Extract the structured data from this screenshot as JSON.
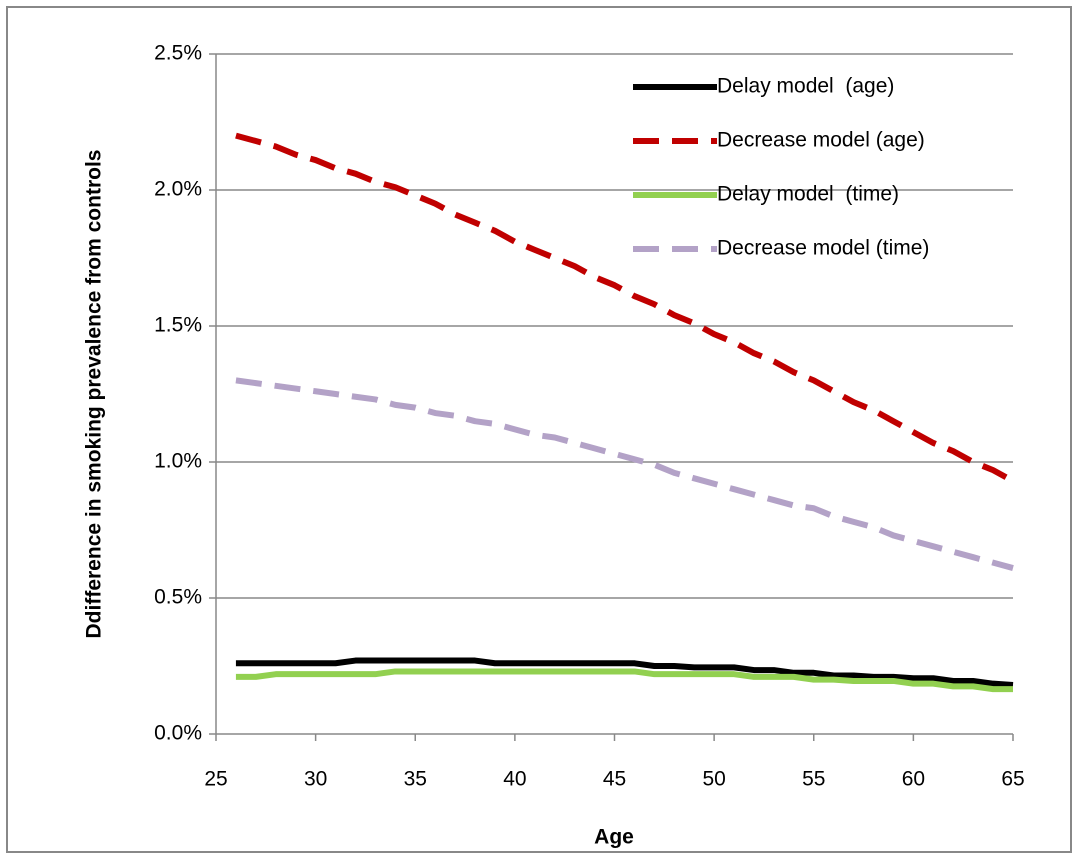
{
  "chart_data": {
    "type": "line",
    "x_label": "Age",
    "y_label": "Ddifference in smoking prevalence from controls",
    "x": [
      26,
      27,
      28,
      29,
      30,
      31,
      32,
      33,
      34,
      35,
      36,
      37,
      38,
      39,
      40,
      41,
      42,
      43,
      44,
      45,
      46,
      47,
      48,
      49,
      50,
      51,
      52,
      53,
      54,
      55,
      56,
      57,
      58,
      59,
      60,
      61,
      62,
      63,
      64,
      65
    ],
    "series": [
      {
        "name": "Delay model  (age)",
        "color": "#000000",
        "dash": false,
        "values": [
          0.26,
          0.26,
          0.26,
          0.26,
          0.26,
          0.26,
          0.27,
          0.27,
          0.27,
          0.27,
          0.27,
          0.27,
          0.27,
          0.26,
          0.26,
          0.26,
          0.26,
          0.26,
          0.26,
          0.26,
          0.26,
          0.25,
          0.25,
          0.245,
          0.245,
          0.245,
          0.235,
          0.235,
          0.225,
          0.225,
          0.215,
          0.215,
          0.21,
          0.21,
          0.205,
          0.205,
          0.195,
          0.195,
          0.185,
          0.18
        ]
      },
      {
        "name": "Decrease model (age)",
        "color": "#c00000",
        "dash": true,
        "values": [
          2.2,
          2.18,
          2.16,
          2.13,
          2.11,
          2.08,
          2.06,
          2.03,
          2.01,
          1.98,
          1.95,
          1.91,
          1.88,
          1.85,
          1.81,
          1.78,
          1.75,
          1.72,
          1.68,
          1.65,
          1.61,
          1.58,
          1.54,
          1.51,
          1.47,
          1.44,
          1.4,
          1.37,
          1.33,
          1.3,
          1.26,
          1.22,
          1.19,
          1.15,
          1.11,
          1.07,
          1.04,
          1.0,
          0.97,
          0.93
        ]
      },
      {
        "name": "Delay model  (time)",
        "color": "#92d050",
        "dash": false,
        "values": [
          0.21,
          0.21,
          0.22,
          0.22,
          0.22,
          0.22,
          0.22,
          0.22,
          0.23,
          0.23,
          0.23,
          0.23,
          0.23,
          0.23,
          0.23,
          0.23,
          0.23,
          0.23,
          0.23,
          0.23,
          0.23,
          0.22,
          0.22,
          0.22,
          0.22,
          0.22,
          0.21,
          0.21,
          0.21,
          0.2,
          0.2,
          0.195,
          0.195,
          0.195,
          0.185,
          0.185,
          0.175,
          0.175,
          0.165,
          0.165
        ]
      },
      {
        "name": "Decrease model (time)",
        "color": "#b3a2c7",
        "dash": true,
        "values": [
          1.3,
          1.29,
          1.28,
          1.27,
          1.26,
          1.25,
          1.24,
          1.23,
          1.21,
          1.2,
          1.18,
          1.17,
          1.15,
          1.14,
          1.12,
          1.1,
          1.09,
          1.07,
          1.05,
          1.03,
          1.01,
          0.99,
          0.96,
          0.94,
          0.92,
          0.9,
          0.88,
          0.86,
          0.84,
          0.83,
          0.8,
          0.78,
          0.76,
          0.73,
          0.71,
          0.69,
          0.67,
          0.65,
          0.63,
          0.61
        ]
      }
    ],
    "xlim": [
      25,
      65
    ],
    "xticks": [
      25,
      30,
      35,
      40,
      45,
      50,
      55,
      60,
      65
    ],
    "ylim": [
      0,
      2.5
    ],
    "yticks": [
      {
        "value": 0,
        "label": "0.0%"
      },
      {
        "value": 0.5,
        "label": "0.5%"
      },
      {
        "value": 1,
        "label": "1.0%"
      },
      {
        "value": 1.5,
        "label": "1.5%"
      },
      {
        "value": 2,
        "label": "2.0%"
      },
      {
        "value": 2.5,
        "label": "2.5%"
      }
    ],
    "grid": true,
    "legend": "top-right"
  }
}
